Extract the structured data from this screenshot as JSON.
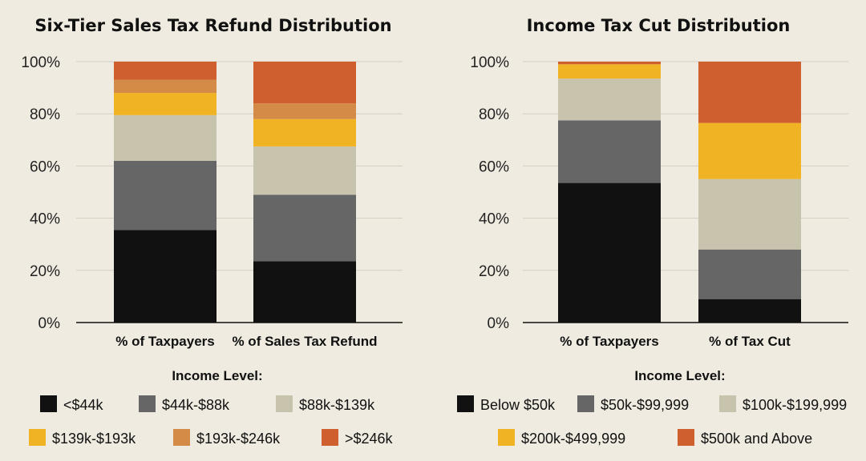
{
  "chart_data": [
    {
      "type": "bar",
      "stacked": true,
      "title": "Six-Tier Sales Tax Refund Distribution",
      "categories": [
        "% of Taxpayers",
        "% of Sales Tax Refund"
      ],
      "ylim": [
        0,
        100
      ],
      "yticks": [
        "0%",
        "20%",
        "40%",
        "60%",
        "80%",
        "100%"
      ],
      "grid": true,
      "legend_title": "Income Level:",
      "legend_position": "bottom",
      "series": [
        {
          "name": "<$44k",
          "color": "#111111",
          "values": [
            35.5,
            23.5
          ]
        },
        {
          "name": "$44k-$88k",
          "color": "#666666",
          "values": [
            26.5,
            25.5
          ]
        },
        {
          "name": "$88k-$139k",
          "color": "#c8c3ad",
          "values": [
            17.5,
            18.5
          ]
        },
        {
          "name": "$139k-$193k",
          "color": "#f0b323",
          "values": [
            8.5,
            10.5
          ]
        },
        {
          "name": "$193k-$246k",
          "color": "#d38b47",
          "values": [
            5,
            6
          ]
        },
        {
          "name": ">$246k",
          "color": "#cf5f2e",
          "values": [
            7,
            16
          ]
        }
      ]
    },
    {
      "type": "bar",
      "stacked": true,
      "title": "Income Tax Cut Distribution",
      "categories": [
        "% of Taxpayers",
        "% of Tax Cut"
      ],
      "ylim": [
        0,
        100
      ],
      "yticks": [
        "0%",
        "20%",
        "40%",
        "60%",
        "80%",
        "100%"
      ],
      "grid": true,
      "legend_title": "Income Level:",
      "legend_position": "bottom",
      "series": [
        {
          "name": "Below $50k",
          "color": "#111111",
          "values": [
            53.5,
            9
          ]
        },
        {
          "name": "$50k-$99,999",
          "color": "#666666",
          "values": [
            24,
            19
          ]
        },
        {
          "name": "$100k-$199,999",
          "color": "#c8c3ad",
          "values": [
            16,
            27
          ]
        },
        {
          "name": "$200k-$499,999",
          "color": "#f0b323",
          "values": [
            5.5,
            21.5
          ]
        },
        {
          "name": "$500k and Above",
          "color": "#cf5f2e",
          "values": [
            1,
            23.5
          ]
        }
      ]
    }
  ]
}
